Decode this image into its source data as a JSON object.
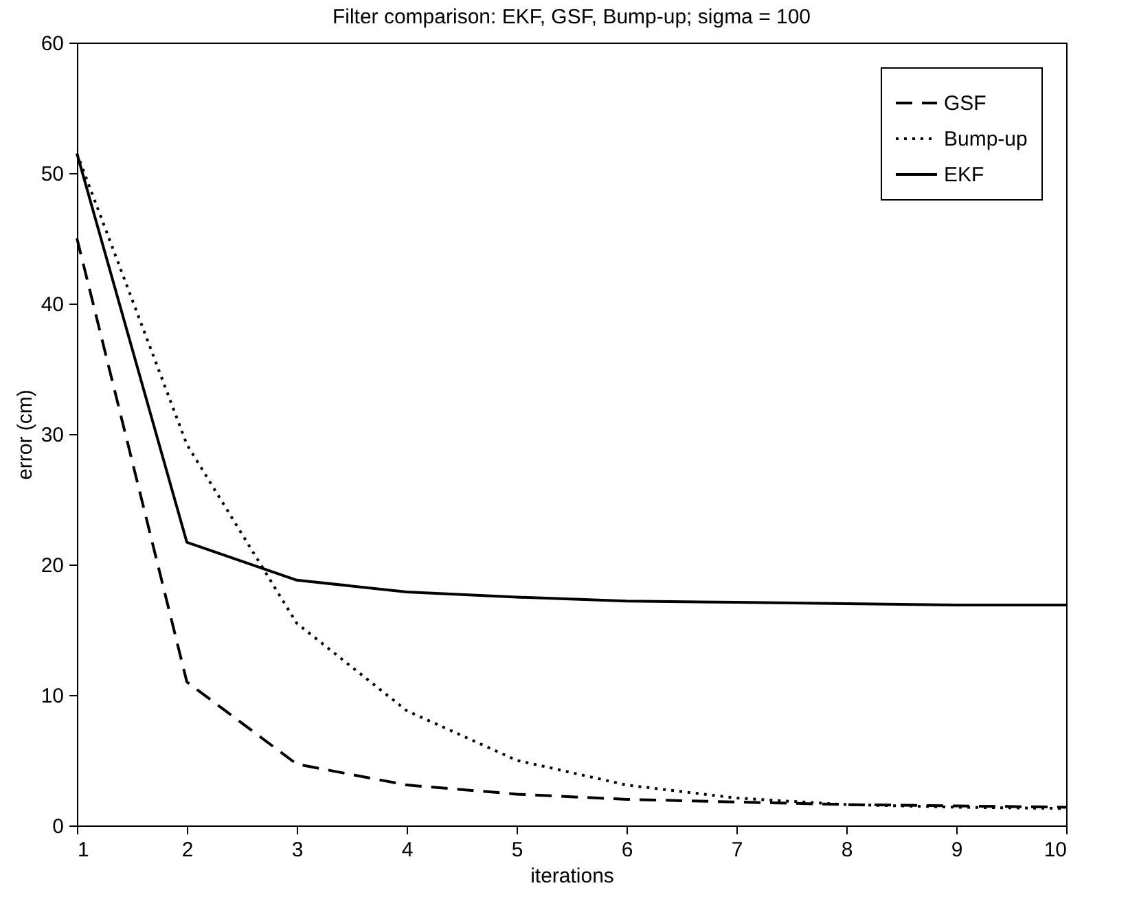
{
  "chart_data": {
    "type": "line",
    "title": "Filter comparison: EKF, GSF, Bump-up; sigma = 100",
    "xlabel": "iterations",
    "ylabel": "error (cm)",
    "x": [
      1,
      2,
      3,
      4,
      5,
      6,
      7,
      8,
      9,
      10
    ],
    "series": [
      {
        "name": "GSF",
        "color": "#000000",
        "line_style": "dashed",
        "values": [
          45,
          11,
          4.7,
          3.1,
          2.4,
          2.0,
          1.8,
          1.6,
          1.5,
          1.4
        ]
      },
      {
        "name": "Bump-up",
        "color": "#000000",
        "line_style": "dotted",
        "values": [
          51.5,
          29.2,
          15.5,
          8.8,
          5.0,
          3.1,
          2.1,
          1.6,
          1.4,
          1.3
        ]
      },
      {
        "name": "EKF",
        "color": "#000000",
        "line_style": "solid",
        "values": [
          51.5,
          21.7,
          18.8,
          17.9,
          17.5,
          17.2,
          17.1,
          17.0,
          16.9,
          16.9
        ]
      }
    ],
    "xlim": [
      1,
      10
    ],
    "xticks": [
      1,
      2,
      3,
      4,
      5,
      6,
      7,
      8,
      9,
      10
    ],
    "ylim": [
      0,
      60
    ],
    "yticks": [
      0,
      10,
      20,
      30,
      40,
      50,
      60
    ],
    "grid": false,
    "legend": "top right",
    "marker": "none"
  }
}
